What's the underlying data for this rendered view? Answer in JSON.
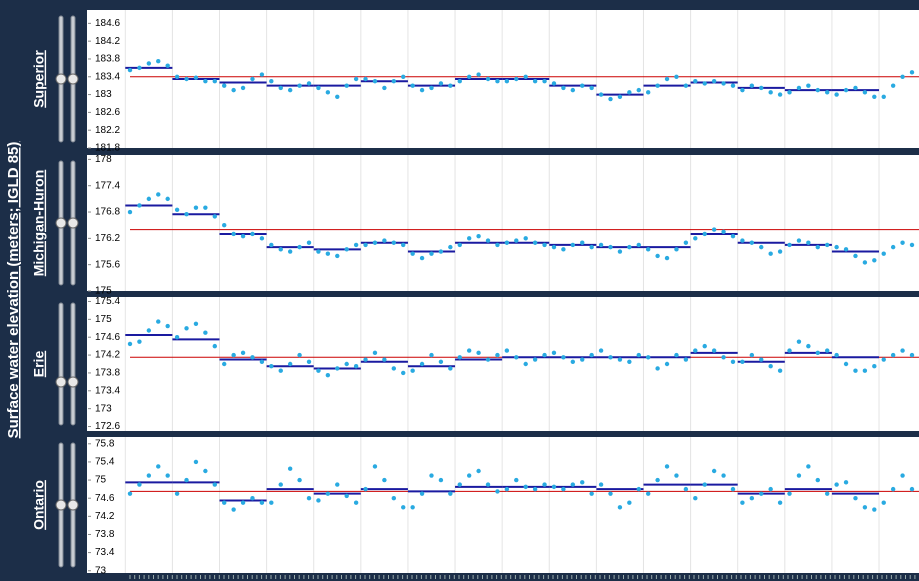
{
  "ylabel": "Surface water elevation (meters; IGLD 85)",
  "chart_data": [
    {
      "type": "scatter",
      "title": "Superior",
      "color": "#29aae1",
      "mean_color": "#1a1aa0",
      "reference_color": "#cc0000",
      "ylim": [
        181.8,
        184.9
      ],
      "yticks": [
        184.6,
        184.2,
        183.8,
        183.4,
        183,
        182.6,
        182.2,
        181.8
      ],
      "reference": 183.4,
      "segment_means": [
        183.6,
        183.35,
        183.27,
        183.2,
        183.2,
        183.3,
        183.2,
        183.35,
        183.35,
        183.2,
        183.0,
        183.2,
        183.27,
        183.15,
        183.1,
        183.1
      ],
      "values": [
        183.55,
        183.6,
        183.7,
        183.75,
        183.65,
        183.4,
        183.35,
        183.38,
        183.3,
        183.3,
        183.2,
        183.1,
        183.15,
        183.35,
        183.45,
        183.3,
        183.15,
        183.1,
        183.2,
        183.25,
        183.15,
        183.05,
        182.95,
        183.2,
        183.35,
        183.35,
        183.3,
        183.15,
        183.3,
        183.4,
        183.2,
        183.1,
        183.15,
        183.25,
        183.2,
        183.3,
        183.4,
        183.45,
        183.35,
        183.3,
        183.3,
        183.35,
        183.4,
        183.3,
        183.3,
        183.25,
        183.15,
        183.1,
        183.2,
        183.15,
        183.0,
        182.9,
        182.95,
        183.05,
        183.1,
        183.05,
        183.2,
        183.35,
        183.4,
        183.2,
        183.3,
        183.25,
        183.3,
        183.25,
        183.2,
        183.1,
        183.2,
        183.15,
        183.05,
        183.0,
        183.05,
        183.15,
        183.2,
        183.1,
        183.05,
        183.0,
        183.1,
        183.15,
        183.05,
        182.95,
        182.95,
        183.2,
        183.4,
        183.5
      ]
    },
    {
      "type": "scatter",
      "title": "Michigan-Huron",
      "color": "#29aae1",
      "mean_color": "#1a1aa0",
      "reference_color": "#cc0000",
      "ylim": [
        175,
        178.1
      ],
      "yticks": [
        178,
        177.4,
        176.8,
        176.2,
        175.6,
        175
      ],
      "reference": 176.4,
      "segment_means": [
        176.95,
        176.75,
        176.3,
        176.0,
        175.95,
        176.1,
        175.9,
        176.1,
        176.1,
        176.05,
        176.0,
        176.0,
        176.3,
        176.1,
        176.05,
        175.9
      ],
      "values": [
        176.8,
        176.95,
        177.1,
        177.2,
        177.1,
        176.85,
        176.75,
        176.9,
        176.9,
        176.7,
        176.5,
        176.3,
        176.25,
        176.3,
        176.2,
        176.05,
        175.95,
        175.9,
        176.0,
        176.1,
        175.9,
        175.85,
        175.8,
        175.95,
        176.05,
        176.05,
        176.1,
        176.15,
        176.1,
        176.05,
        175.85,
        175.75,
        175.85,
        175.9,
        176.0,
        176.05,
        176.2,
        176.25,
        176.15,
        176.05,
        176.1,
        176.15,
        176.2,
        176.1,
        176.05,
        176.0,
        175.95,
        176.05,
        176.1,
        176.0,
        176.05,
        176.0,
        175.9,
        176.0,
        176.05,
        175.95,
        175.8,
        175.75,
        175.95,
        176.1,
        176.2,
        176.3,
        176.4,
        176.35,
        176.25,
        176.15,
        176.1,
        176.0,
        175.85,
        175.9,
        176.05,
        176.15,
        176.1,
        176.0,
        176.05,
        176.0,
        175.95,
        175.8,
        175.65,
        175.7,
        175.85,
        176.0,
        176.1,
        176.05
      ]
    },
    {
      "type": "scatter",
      "title": "Erie",
      "color": "#29aae1",
      "mean_color": "#1a1aa0",
      "reference_color": "#cc0000",
      "ylim": [
        172.5,
        175.5
      ],
      "yticks": [
        175.4,
        175,
        174.6,
        174.2,
        173.8,
        173.4,
        173,
        172.6
      ],
      "reference": 174.15,
      "segment_means": [
        174.65,
        174.55,
        174.1,
        173.95,
        173.9,
        174.05,
        173.95,
        174.1,
        174.15,
        174.15,
        174.15,
        174.15,
        174.25,
        174.05,
        174.25,
        174.15
      ],
      "values": [
        174.45,
        174.5,
        174.75,
        174.95,
        174.85,
        174.6,
        174.8,
        174.9,
        174.7,
        174.4,
        174.0,
        174.2,
        174.25,
        174.15,
        174.05,
        173.95,
        173.85,
        174.0,
        174.2,
        174.05,
        173.85,
        173.75,
        173.9,
        174.0,
        173.95,
        174.1,
        174.25,
        174.1,
        173.9,
        173.8,
        173.85,
        174.0,
        174.2,
        174.05,
        173.9,
        174.15,
        174.3,
        174.25,
        174.1,
        174.2,
        174.3,
        174.15,
        174.0,
        174.1,
        174.2,
        174.25,
        174.15,
        174.05,
        174.1,
        174.2,
        174.3,
        174.15,
        174.1,
        174.05,
        174.2,
        174.15,
        173.9,
        174.0,
        174.2,
        174.1,
        174.3,
        174.4,
        174.3,
        174.15,
        174.05,
        174.05,
        174.2,
        174.1,
        173.95,
        173.85,
        174.3,
        174.5,
        174.4,
        174.25,
        174.3,
        174.2,
        174.0,
        173.85,
        173.85,
        173.95,
        174.1,
        174.2,
        174.3,
        174.2
      ]
    },
    {
      "type": "scatter",
      "title": "Ontario",
      "color": "#29aae1",
      "mean_color": "#1a1aa0",
      "reference_color": "#cc0000",
      "ylim": [
        72.95,
        75.95
      ],
      "yticks": [
        75.8,
        75.4,
        75,
        74.6,
        74.2,
        73.8,
        73.4,
        73
      ],
      "reference": 74.75,
      "segment_means": [
        74.95,
        74.95,
        74.55,
        74.8,
        74.7,
        74.8,
        74.75,
        74.85,
        74.85,
        74.85,
        74.8,
        74.9,
        74.9,
        74.7,
        74.8,
        74.7
      ],
      "values": [
        74.7,
        74.9,
        75.1,
        75.3,
        75.1,
        74.7,
        75.0,
        75.4,
        75.2,
        74.9,
        74.5,
        74.35,
        74.5,
        74.6,
        74.5,
        74.5,
        74.9,
        75.25,
        75.0,
        74.6,
        74.55,
        74.7,
        74.9,
        74.65,
        74.5,
        74.8,
        75.3,
        75.0,
        74.6,
        74.4,
        74.4,
        74.7,
        75.1,
        75.0,
        74.7,
        74.9,
        75.1,
        75.2,
        74.9,
        74.75,
        74.8,
        75.0,
        74.85,
        74.8,
        74.9,
        74.85,
        74.8,
        74.9,
        74.95,
        74.7,
        74.9,
        74.7,
        74.4,
        74.5,
        74.8,
        74.7,
        75.0,
        75.3,
        75.1,
        74.8,
        74.6,
        74.9,
        75.2,
        75.1,
        74.8,
        74.5,
        74.6,
        74.7,
        74.8,
        74.5,
        74.7,
        75.1,
        75.3,
        75.0,
        74.7,
        74.9,
        74.95,
        74.6,
        74.4,
        74.35,
        74.5,
        74.8,
        75.1,
        74.8
      ]
    }
  ]
}
